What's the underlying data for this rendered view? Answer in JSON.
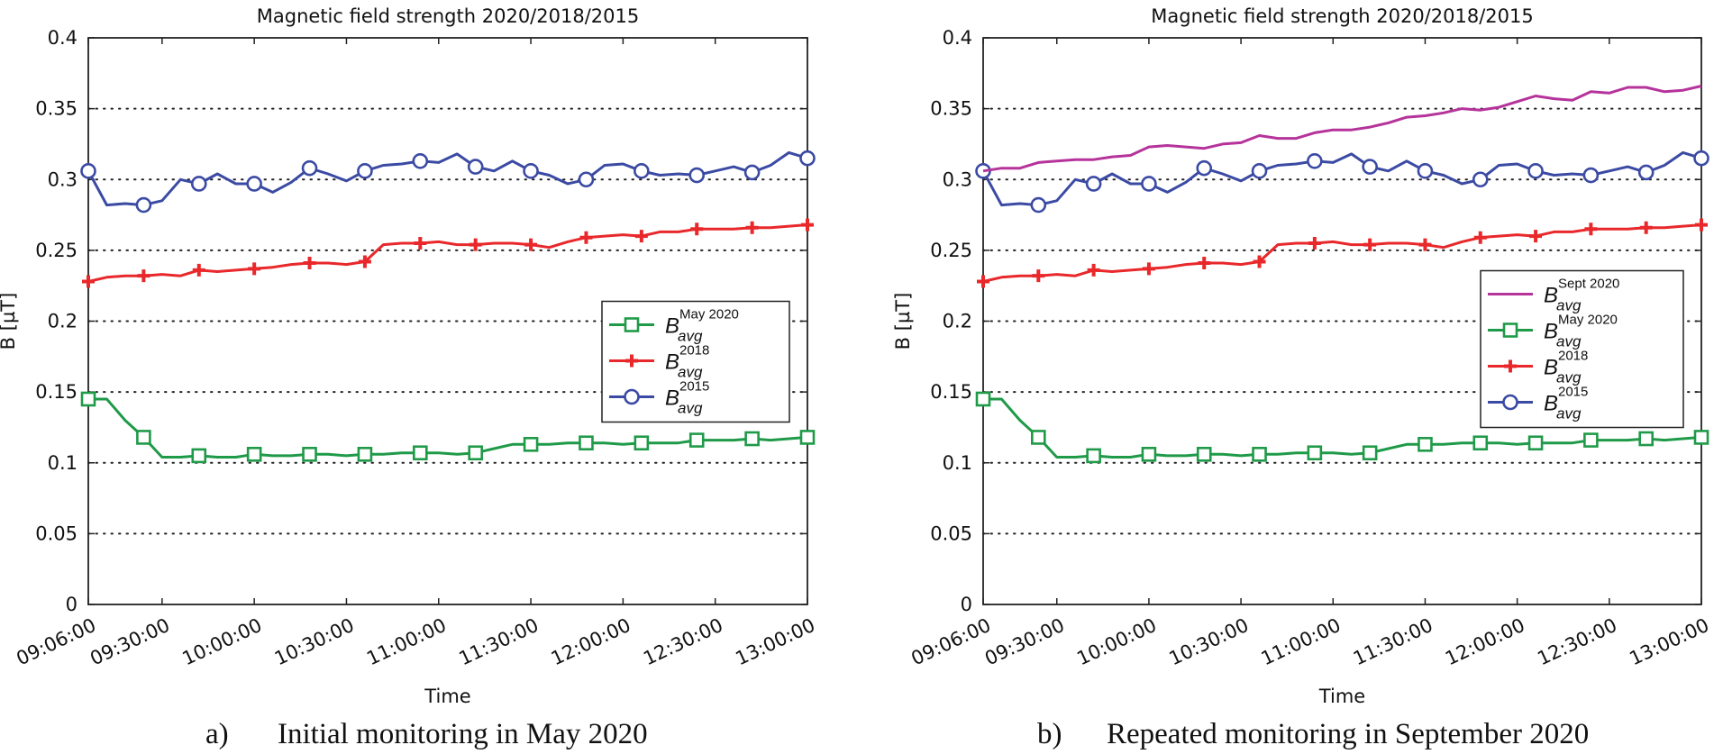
{
  "chart_data": [
    {
      "type": "line",
      "title": "Magnetic field strength 2020/2018/2015",
      "xlabel": "Time",
      "ylabel": "B [µT]",
      "caption_letter": "a)",
      "caption_text": "Initial monitoring in May 2020",
      "x_tick_labels": [
        "09:06:00",
        "09:30:00",
        "10:00:00",
        "10:30:00",
        "11:00:00",
        "11:30:00",
        "12:00:00",
        "12:30:00",
        "13:00:00"
      ],
      "x_tick_minutes": [
        546,
        570,
        600,
        630,
        660,
        690,
        720,
        750,
        780
      ],
      "xlim_minutes": [
        546,
        780
      ],
      "y_tick_labels": [
        "0",
        "0.05",
        "0.1",
        "0.15",
        "0.2",
        "0.25",
        "0.3",
        "0.35",
        "0.4"
      ],
      "ylim": [
        0,
        0.4
      ],
      "grid": "horizontal-dotted",
      "legend_position": "right-middle",
      "series": [
        {
          "name": "B_avg May 2020",
          "legend_main": "B",
          "legend_sub": "avg",
          "legend_sup": "May 2020",
          "color": "#1f9a48",
          "marker": "square",
          "x": [
            546,
            552,
            558,
            564,
            570,
            576,
            582,
            588,
            594,
            600,
            606,
            612,
            618,
            624,
            630,
            636,
            642,
            648,
            654,
            660,
            666,
            672,
            678,
            684,
            690,
            696,
            702,
            708,
            714,
            720,
            726,
            732,
            738,
            744,
            750,
            756,
            762,
            768,
            774,
            780
          ],
          "y": [
            0.145,
            0.145,
            0.13,
            0.118,
            0.104,
            0.104,
            0.105,
            0.104,
            0.104,
            0.106,
            0.105,
            0.105,
            0.106,
            0.106,
            0.105,
            0.106,
            0.106,
            0.107,
            0.107,
            0.107,
            0.106,
            0.107,
            0.11,
            0.113,
            0.113,
            0.113,
            0.114,
            0.114,
            0.114,
            0.113,
            0.114,
            0.114,
            0.114,
            0.116,
            0.116,
            0.116,
            0.117,
            0.116,
            0.117,
            0.118
          ],
          "marker_every": 3
        },
        {
          "name": "B_avg 2018",
          "legend_main": "B",
          "legend_sub": "avg",
          "legend_sup": "2018",
          "color": "#e8282b",
          "marker": "plus",
          "x": [
            546,
            552,
            558,
            564,
            570,
            576,
            582,
            588,
            594,
            600,
            606,
            612,
            618,
            624,
            630,
            636,
            642,
            648,
            654,
            660,
            666,
            672,
            678,
            684,
            690,
            696,
            702,
            708,
            714,
            720,
            726,
            732,
            738,
            744,
            750,
            756,
            762,
            768,
            774,
            780
          ],
          "y": [
            0.228,
            0.231,
            0.232,
            0.232,
            0.233,
            0.232,
            0.236,
            0.235,
            0.236,
            0.237,
            0.238,
            0.24,
            0.241,
            0.241,
            0.24,
            0.242,
            0.254,
            0.255,
            0.255,
            0.256,
            0.254,
            0.254,
            0.255,
            0.255,
            0.254,
            0.252,
            0.256,
            0.259,
            0.26,
            0.261,
            0.26,
            0.263,
            0.263,
            0.265,
            0.265,
            0.265,
            0.266,
            0.266,
            0.267,
            0.268
          ],
          "marker_every": 3
        },
        {
          "name": "B_avg 2015",
          "legend_main": "B",
          "legend_sub": "avg",
          "legend_sup": "2015",
          "color": "#3b4aa3",
          "marker": "circle",
          "x": [
            546,
            552,
            558,
            564,
            570,
            576,
            582,
            588,
            594,
            600,
            606,
            612,
            618,
            624,
            630,
            636,
            642,
            648,
            654,
            660,
            666,
            672,
            678,
            684,
            690,
            696,
            702,
            708,
            714,
            720,
            726,
            732,
            738,
            744,
            750,
            756,
            762,
            768,
            774,
            780
          ],
          "y": [
            0.306,
            0.282,
            0.283,
            0.282,
            0.285,
            0.3,
            0.297,
            0.304,
            0.297,
            0.297,
            0.291,
            0.298,
            0.308,
            0.304,
            0.299,
            0.306,
            0.31,
            0.311,
            0.313,
            0.312,
            0.318,
            0.309,
            0.306,
            0.313,
            0.306,
            0.303,
            0.297,
            0.3,
            0.31,
            0.311,
            0.306,
            0.303,
            0.304,
            0.303,
            0.306,
            0.309,
            0.305,
            0.31,
            0.319,
            0.315
          ],
          "marker_every": 3
        }
      ]
    },
    {
      "type": "line",
      "title": "Magnetic field strength 2020/2018/2015",
      "xlabel": "Time",
      "ylabel": "B [µT]",
      "caption_letter": "b)",
      "caption_text": "Repeated monitoring in September 2020",
      "x_tick_labels": [
        "09:06:00",
        "09:30:00",
        "10:00:00",
        "10:30:00",
        "11:00:00",
        "11:30:00",
        "12:00:00",
        "12:30:00",
        "13:00:00"
      ],
      "x_tick_minutes": [
        546,
        570,
        600,
        630,
        660,
        690,
        720,
        750,
        780
      ],
      "xlim_minutes": [
        546,
        780
      ],
      "y_tick_labels": [
        "0",
        "0.05",
        "0.1",
        "0.15",
        "0.2",
        "0.25",
        "0.3",
        "0.35",
        "0.4"
      ],
      "ylim": [
        0,
        0.4
      ],
      "grid": "horizontal-dotted",
      "legend_position": "right-middle",
      "series": [
        {
          "name": "B_avg Sept 2020",
          "legend_main": "B",
          "legend_sub": "avg",
          "legend_sup": "Sept 2020",
          "color": "#b5339a",
          "marker": "none",
          "x": [
            546,
            552,
            558,
            564,
            570,
            576,
            582,
            588,
            594,
            600,
            606,
            612,
            618,
            624,
            630,
            636,
            642,
            648,
            654,
            660,
            666,
            672,
            678,
            684,
            690,
            696,
            702,
            708,
            714,
            720,
            726,
            732,
            738,
            744,
            750,
            756,
            762,
            768,
            774,
            780
          ],
          "y": [
            0.306,
            0.308,
            0.308,
            0.312,
            0.313,
            0.314,
            0.314,
            0.316,
            0.317,
            0.323,
            0.324,
            0.323,
            0.322,
            0.325,
            0.326,
            0.331,
            0.329,
            0.329,
            0.333,
            0.335,
            0.335,
            0.337,
            0.34,
            0.344,
            0.345,
            0.347,
            0.35,
            0.349,
            0.351,
            0.355,
            0.359,
            0.357,
            0.356,
            0.362,
            0.361,
            0.365,
            0.365,
            0.362,
            0.363,
            0.366
          ],
          "marker_every": 0
        },
        {
          "name": "B_avg May 2020",
          "legend_main": "B",
          "legend_sub": "avg",
          "legend_sup": "May 2020",
          "color": "#1f9a48",
          "marker": "square",
          "x": [
            546,
            552,
            558,
            564,
            570,
            576,
            582,
            588,
            594,
            600,
            606,
            612,
            618,
            624,
            630,
            636,
            642,
            648,
            654,
            660,
            666,
            672,
            678,
            684,
            690,
            696,
            702,
            708,
            714,
            720,
            726,
            732,
            738,
            744,
            750,
            756,
            762,
            768,
            774,
            780
          ],
          "y": [
            0.145,
            0.145,
            0.13,
            0.118,
            0.104,
            0.104,
            0.105,
            0.104,
            0.104,
            0.106,
            0.105,
            0.105,
            0.106,
            0.106,
            0.105,
            0.106,
            0.106,
            0.107,
            0.107,
            0.107,
            0.106,
            0.107,
            0.11,
            0.113,
            0.113,
            0.113,
            0.114,
            0.114,
            0.114,
            0.113,
            0.114,
            0.114,
            0.114,
            0.116,
            0.116,
            0.116,
            0.117,
            0.116,
            0.117,
            0.118
          ],
          "marker_every": 3
        },
        {
          "name": "B_avg 2018",
          "legend_main": "B",
          "legend_sub": "avg",
          "legend_sup": "2018",
          "color": "#e8282b",
          "marker": "plus",
          "x": [
            546,
            552,
            558,
            564,
            570,
            576,
            582,
            588,
            594,
            600,
            606,
            612,
            618,
            624,
            630,
            636,
            642,
            648,
            654,
            660,
            666,
            672,
            678,
            684,
            690,
            696,
            702,
            708,
            714,
            720,
            726,
            732,
            738,
            744,
            750,
            756,
            762,
            768,
            774,
            780
          ],
          "y": [
            0.228,
            0.231,
            0.232,
            0.232,
            0.233,
            0.232,
            0.236,
            0.235,
            0.236,
            0.237,
            0.238,
            0.24,
            0.241,
            0.241,
            0.24,
            0.242,
            0.254,
            0.255,
            0.255,
            0.256,
            0.254,
            0.254,
            0.255,
            0.255,
            0.254,
            0.252,
            0.256,
            0.259,
            0.26,
            0.261,
            0.26,
            0.263,
            0.263,
            0.265,
            0.265,
            0.265,
            0.266,
            0.266,
            0.267,
            0.268
          ],
          "marker_every": 3
        },
        {
          "name": "B_avg 2015",
          "legend_main": "B",
          "legend_sub": "avg",
          "legend_sup": "2015",
          "color": "#3b4aa3",
          "marker": "circle",
          "x": [
            546,
            552,
            558,
            564,
            570,
            576,
            582,
            588,
            594,
            600,
            606,
            612,
            618,
            624,
            630,
            636,
            642,
            648,
            654,
            660,
            666,
            672,
            678,
            684,
            690,
            696,
            702,
            708,
            714,
            720,
            726,
            732,
            738,
            744,
            750,
            756,
            762,
            768,
            774,
            780
          ],
          "y": [
            0.306,
            0.282,
            0.283,
            0.282,
            0.285,
            0.3,
            0.297,
            0.304,
            0.297,
            0.297,
            0.291,
            0.298,
            0.308,
            0.304,
            0.299,
            0.306,
            0.31,
            0.311,
            0.313,
            0.312,
            0.318,
            0.309,
            0.306,
            0.313,
            0.306,
            0.303,
            0.297,
            0.3,
            0.31,
            0.311,
            0.306,
            0.303,
            0.304,
            0.303,
            0.306,
            0.309,
            0.305,
            0.31,
            0.319,
            0.315
          ],
          "marker_every": 3
        }
      ]
    }
  ]
}
